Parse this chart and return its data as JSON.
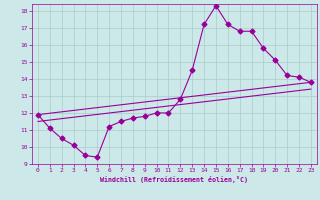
{
  "x": [
    0,
    1,
    2,
    3,
    4,
    5,
    6,
    7,
    8,
    9,
    10,
    11,
    12,
    13,
    14,
    15,
    16,
    17,
    18,
    19,
    20,
    21,
    22,
    23
  ],
  "line_main": [
    11.9,
    11.1,
    10.5,
    10.1,
    9.5,
    9.4,
    11.2,
    11.5,
    11.7,
    11.8,
    12.0,
    12.0,
    12.8,
    14.5,
    17.2,
    18.3,
    17.2,
    16.8,
    16.8,
    15.8,
    15.1,
    14.2,
    14.1,
    13.8
  ],
  "trend1_x": [
    0,
    23
  ],
  "trend1_y": [
    11.9,
    13.8
  ],
  "trend2_x": [
    0,
    23
  ],
  "trend2_y": [
    11.5,
    13.4
  ],
  "color": "#990099",
  "bg_color": "#cce8e8",
  "grid_color": "#aacccc",
  "xlabel": "Windchill (Refroidissement éolien,°C)",
  "xlim": [
    -0.5,
    23.5
  ],
  "ylim": [
    9,
    18.4
  ],
  "yticks": [
    9,
    10,
    11,
    12,
    13,
    14,
    15,
    16,
    17,
    18
  ],
  "xticks": [
    0,
    1,
    2,
    3,
    4,
    5,
    6,
    7,
    8,
    9,
    10,
    11,
    12,
    13,
    14,
    15,
    16,
    17,
    18,
    19,
    20,
    21,
    22,
    23
  ],
  "marker": "D",
  "markersize": 2.5,
  "linewidth": 0.8
}
